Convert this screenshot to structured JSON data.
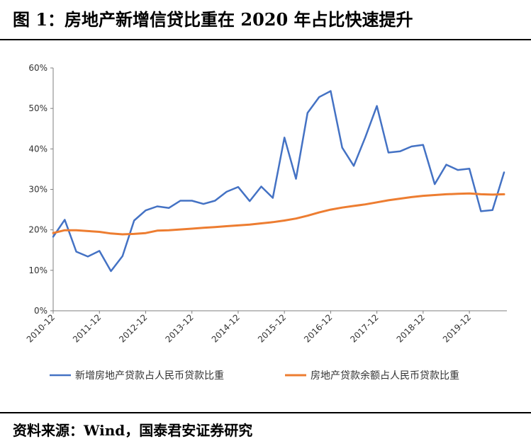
{
  "figure": {
    "title": "图 1：房地产新增信贷比重在 2020 年占比快速提升",
    "source": "资料来源：Wind，国泰君安证券研究"
  },
  "chart_data": {
    "type": "line",
    "ylim": [
      0,
      60
    ],
    "yticks": [
      "0%",
      "10%",
      "20%",
      "30%",
      "40%",
      "50%",
      "60%"
    ],
    "xtick_labels": [
      "2010-12",
      "2011-12",
      "2012-12",
      "2013-12",
      "2014-12",
      "2015-12",
      "2016-12",
      "2017-12",
      "2018-12",
      "2019-12"
    ],
    "grid": false,
    "legend_position": "bottom",
    "series": [
      {
        "name": "新增房地产贷款占人民币贷款比重",
        "color": "#4472C4",
        "values": [
          18.3,
          22.5,
          14.6,
          13.4,
          14.8,
          9.8,
          13.5,
          22.3,
          24.8,
          25.8,
          25.4,
          27.2,
          27.2,
          26.4,
          27.2,
          29.4,
          30.6,
          27.1,
          30.7,
          27.9,
          42.8,
          32.6,
          48.9,
          52.8,
          54.3,
          40.3,
          35.8,
          42.9,
          50.6,
          39.1,
          39.4,
          40.6,
          41.0,
          31.3,
          36.1,
          34.8,
          35.1,
          24.6,
          24.9,
          34.2
        ]
      },
      {
        "name": "房地产贷款余额占人民币贷款比重",
        "color": "#ED7D31",
        "values": [
          19.2,
          19.9,
          19.9,
          19.7,
          19.5,
          19.1,
          18.9,
          19.0,
          19.2,
          19.8,
          19.9,
          20.1,
          20.3,
          20.5,
          20.7,
          20.9,
          21.1,
          21.3,
          21.6,
          21.9,
          22.3,
          22.8,
          23.5,
          24.3,
          25.0,
          25.5,
          25.9,
          26.3,
          26.8,
          27.3,
          27.7,
          28.1,
          28.4,
          28.6,
          28.8,
          28.9,
          29.0,
          28.8,
          28.7,
          28.8
        ]
      }
    ]
  }
}
